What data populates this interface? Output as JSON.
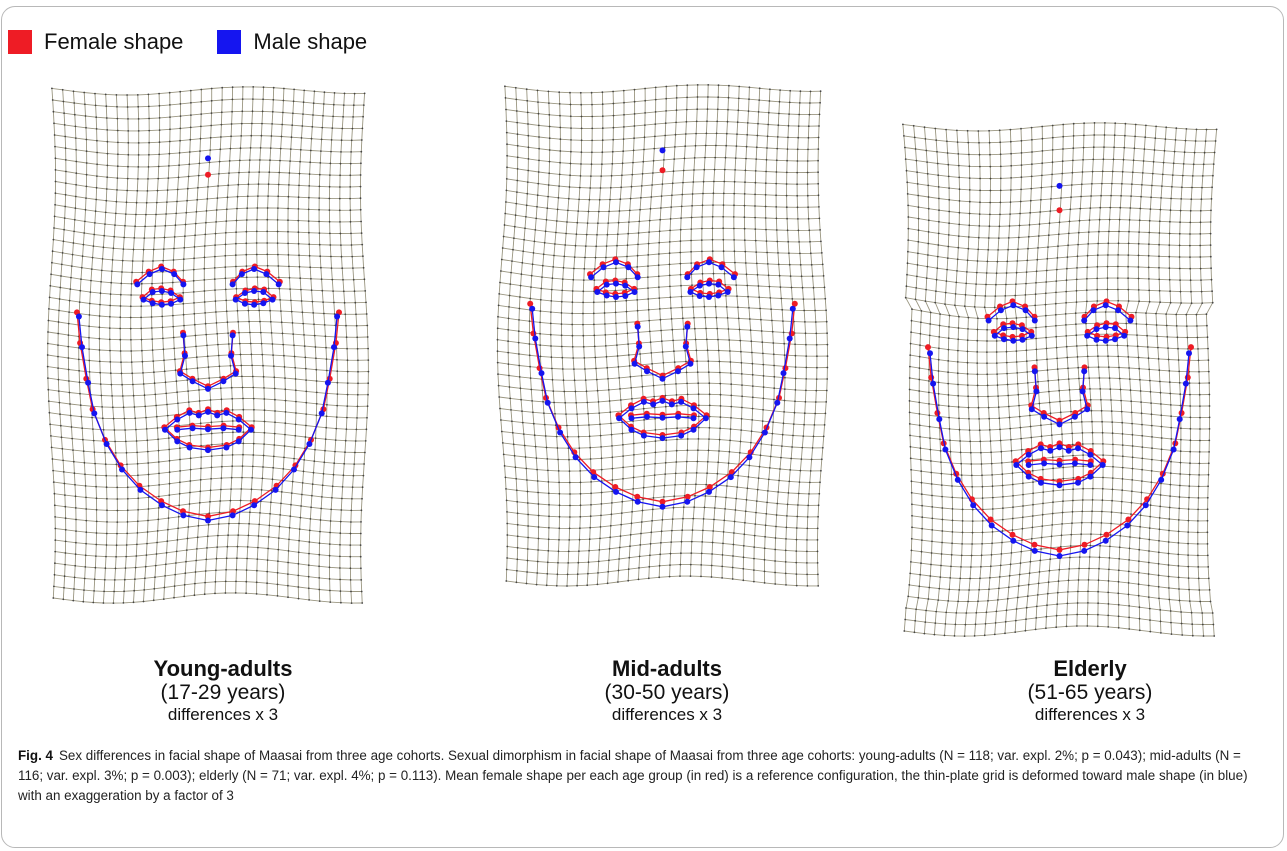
{
  "legend": {
    "female": {
      "label": "Female shape",
      "color": "#ee1c25"
    },
    "male": {
      "label": "Male shape",
      "color": "#1515f0"
    }
  },
  "grid_color": "#9a9680",
  "panels": [
    {
      "name": "Young-adults",
      "years": "(17-29 years)",
      "diff": "differences x 3"
    },
    {
      "name": "Mid-adults",
      "years": "(30-50 years)",
      "diff": "differences x 3"
    },
    {
      "name": "Elderly",
      "years": "(51-65 years)",
      "diff": "differences x 3"
    }
  ],
  "caption": {
    "fig_label": "Fig. 4",
    "text": "Sex differences in facial shape of Maasai from three age cohorts. Sexual dimorphism in facial shape of Maasai from three age cohorts: young-adults (N = 118; var. expl. 2%; p = 0.043); mid-adults (N = 116; var. expl. 3%; p = 0.003); elderly (N = 71; var. expl. 4%; p = 0.113). Mean female shape per each age group (in red) is a reference configuration, the thin-plate grid is deformed toward male shape (in blue) with an exaggeration by a factor of 3"
  }
}
